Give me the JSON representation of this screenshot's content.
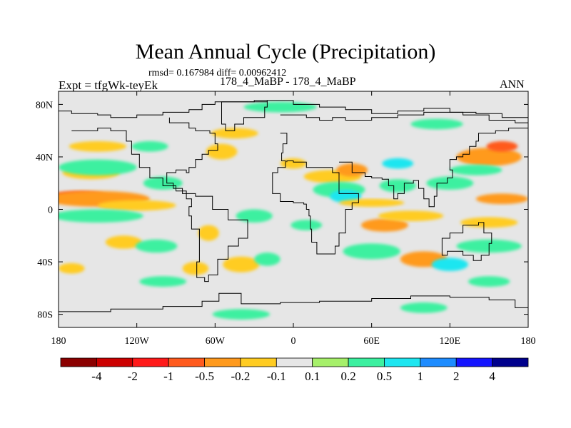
{
  "chart_data": {
    "type": "heatmap",
    "title": "Mean Annual Cycle (Precipitation)",
    "subtitle": "rmsd= 0.167984 diff= 0.00962412",
    "left_label": "Expt = tfgWk-teyEk",
    "center_label": "178_4_MaBP - 178_4_MaBP",
    "right_label": "ANN",
    "x_ticks": [
      "180",
      "120W",
      "60W",
      "0",
      "60E",
      "120E",
      "180"
    ],
    "x_tick_values": [
      -180,
      -120,
      -60,
      0,
      60,
      120,
      180
    ],
    "y_ticks": [
      "80N",
      "40N",
      "0",
      "40S",
      "80S"
    ],
    "y_tick_values": [
      80,
      40,
      0,
      -40,
      -80
    ],
    "xlim": [
      -180,
      180
    ],
    "ylim": [
      -90,
      90
    ],
    "colorbar": {
      "levels": [
        "-4",
        "-2",
        "-1",
        "-0.5",
        "-0.2",
        "-0.1",
        "0.1",
        "0.2",
        "0.5",
        "1",
        "2",
        "4"
      ],
      "colors": [
        "#8b0000",
        "#cc0000",
        "#ff1a1a",
        "#ff5a1e",
        "#ff9a1e",
        "#ffcc22",
        "#e6e6e6",
        "#a6f06a",
        "#3cf0a0",
        "#1ee6f0",
        "#1e8cff",
        "#1414ff",
        "#00008c"
      ]
    },
    "anomaly_patches": [
      {
        "lon": -165,
        "lat": 10,
        "rx": 22,
        "ry": 4,
        "value": -1
      },
      {
        "lon": -150,
        "lat": 8,
        "rx": 40,
        "ry": 6,
        "value": -0.5
      },
      {
        "lon": -120,
        "lat": 3,
        "rx": 30,
        "ry": 4,
        "value": -0.2
      },
      {
        "lon": -155,
        "lat": 28,
        "rx": 22,
        "ry": 5,
        "value": -0.2
      },
      {
        "lon": -150,
        "lat": 32,
        "rx": 30,
        "ry": 6,
        "value": 0.2
      },
      {
        "lon": -100,
        "lat": 20,
        "rx": 15,
        "ry": 5,
        "value": 0.2
      },
      {
        "lon": -150,
        "lat": -5,
        "rx": 35,
        "ry": 5,
        "value": 0.2
      },
      {
        "lon": -150,
        "lat": 48,
        "rx": 22,
        "ry": 4,
        "value": -0.2
      },
      {
        "lon": -110,
        "lat": 48,
        "rx": 14,
        "ry": 4,
        "value": 0.2
      },
      {
        "lon": -130,
        "lat": -25,
        "rx": 14,
        "ry": 5,
        "value": -0.2
      },
      {
        "lon": -105,
        "lat": -28,
        "rx": 16,
        "ry": 5,
        "value": 0.2
      },
      {
        "lon": -65,
        "lat": -18,
        "rx": 8,
        "ry": 6,
        "value": -0.2
      },
      {
        "lon": -75,
        "lat": -45,
        "rx": 10,
        "ry": 5,
        "value": -0.2
      },
      {
        "lon": -40,
        "lat": -42,
        "rx": 14,
        "ry": 6,
        "value": -0.2
      },
      {
        "lon": -55,
        "lat": 44,
        "rx": 12,
        "ry": 6,
        "value": -0.2
      },
      {
        "lon": -45,
        "lat": 58,
        "rx": 18,
        "ry": 4,
        "value": -0.2
      },
      {
        "lon": -10,
        "lat": 78,
        "rx": 28,
        "ry": 4,
        "value": 0.2
      },
      {
        "lon": -30,
        "lat": -5,
        "rx": 14,
        "ry": 5,
        "value": 0.2
      },
      {
        "lon": -20,
        "lat": -38,
        "rx": 10,
        "ry": 5,
        "value": 0.2
      },
      {
        "lon": -40,
        "lat": -80,
        "rx": 22,
        "ry": 4,
        "value": 0.2
      },
      {
        "lon": 30,
        "lat": 25,
        "rx": 22,
        "ry": 5,
        "value": -0.2
      },
      {
        "lon": 35,
        "lat": 15,
        "rx": 20,
        "ry": 6,
        "value": 0.2
      },
      {
        "lon": 40,
        "lat": 10,
        "rx": 12,
        "ry": 5,
        "value": 0.5
      },
      {
        "lon": 45,
        "lat": 30,
        "rx": 12,
        "ry": 5,
        "value": -0.5
      },
      {
        "lon": 60,
        "lat": 5,
        "rx": 25,
        "ry": 3,
        "value": -0.2
      },
      {
        "lon": 80,
        "lat": 18,
        "rx": 14,
        "ry": 5,
        "value": 0.2
      },
      {
        "lon": 70,
        "lat": -12,
        "rx": 18,
        "ry": 5,
        "value": -0.5
      },
      {
        "lon": 90,
        "lat": -5,
        "rx": 25,
        "ry": 4,
        "value": -0.2
      },
      {
        "lon": 60,
        "lat": -32,
        "rx": 22,
        "ry": 6,
        "value": 0.2
      },
      {
        "lon": 100,
        "lat": -38,
        "rx": 18,
        "ry": 6,
        "value": -0.5
      },
      {
        "lon": 120,
        "lat": -42,
        "rx": 14,
        "ry": 5,
        "value": 0.5
      },
      {
        "lon": 150,
        "lat": -28,
        "rx": 25,
        "ry": 5,
        "value": 0.2
      },
      {
        "lon": 150,
        "lat": -10,
        "rx": 22,
        "ry": 4,
        "value": -0.2
      },
      {
        "lon": 160,
        "lat": 8,
        "rx": 20,
        "ry": 4,
        "value": -0.5
      },
      {
        "lon": 120,
        "lat": 20,
        "rx": 18,
        "ry": 5,
        "value": 0.2
      },
      {
        "lon": 150,
        "lat": 40,
        "rx": 25,
        "ry": 7,
        "value": -0.5
      },
      {
        "lon": 160,
        "lat": 48,
        "rx": 12,
        "ry": 4,
        "value": -1
      },
      {
        "lon": 140,
        "lat": 30,
        "rx": 20,
        "ry": 4,
        "value": 0.2
      },
      {
        "lon": 110,
        "lat": 65,
        "rx": 20,
        "ry": 4,
        "value": 0.2
      },
      {
        "lon": 100,
        "lat": -75,
        "rx": 18,
        "ry": 4,
        "value": 0.2
      },
      {
        "lon": 150,
        "lat": -55,
        "rx": 16,
        "ry": 4,
        "value": 0.2
      },
      {
        "lon": -100,
        "lat": -55,
        "rx": 18,
        "ry": 4,
        "value": 0.2
      },
      {
        "lon": -170,
        "lat": -45,
        "rx": 10,
        "ry": 4,
        "value": -0.2
      },
      {
        "lon": 0,
        "lat": 35,
        "rx": 10,
        "ry": 4,
        "value": -0.2
      },
      {
        "lon": 80,
        "lat": 35,
        "rx": 12,
        "ry": 4,
        "value": 0.5
      },
      {
        "lon": 10,
        "lat": -12,
        "rx": 12,
        "ry": 4,
        "value": 0.2
      }
    ],
    "coastlines": [
      {
        "name": "arctic-coast",
        "closed": false,
        "points": [
          [
            -180,
            75
          ],
          [
            -170,
            73
          ],
          [
            -150,
            72
          ],
          [
            -140,
            70
          ],
          [
            -120,
            72
          ],
          [
            -100,
            74
          ],
          [
            -80,
            76
          ],
          [
            -70,
            80
          ],
          [
            -60,
            82
          ],
          [
            -20,
            83
          ],
          [
            0,
            80
          ],
          [
            20,
            78
          ],
          [
            40,
            76
          ],
          [
            60,
            73
          ],
          [
            80,
            75
          ],
          [
            100,
            77
          ],
          [
            120,
            74
          ],
          [
            140,
            73
          ],
          [
            160,
            70
          ],
          [
            180,
            70
          ]
        ]
      },
      {
        "name": "americas",
        "closed": false,
        "points": [
          [
            -170,
            60
          ],
          [
            -150,
            62
          ],
          [
            -140,
            60
          ],
          [
            -128,
            52
          ],
          [
            -124,
            42
          ],
          [
            -118,
            32
          ],
          [
            -110,
            24
          ],
          [
            -100,
            18
          ],
          [
            -90,
            14
          ],
          [
            -82,
            8
          ],
          [
            -78,
            2
          ],
          [
            -80,
            -5
          ],
          [
            -78,
            -15
          ],
          [
            -72,
            -25
          ],
          [
            -72,
            -40
          ],
          [
            -74,
            -52
          ],
          [
            -68,
            -55
          ],
          [
            -65,
            -50
          ],
          [
            -58,
            -38
          ],
          [
            -50,
            -28
          ],
          [
            -42,
            -22
          ],
          [
            -35,
            -8
          ],
          [
            -50,
            0
          ],
          [
            -62,
            10
          ],
          [
            -75,
            12
          ],
          [
            -85,
            16
          ],
          [
            -92,
            20
          ],
          [
            -97,
            28
          ],
          [
            -90,
            30
          ],
          [
            -82,
            28
          ],
          [
            -80,
            32
          ],
          [
            -75,
            38
          ],
          [
            -70,
            42
          ],
          [
            -65,
            45
          ],
          [
            -58,
            50
          ],
          [
            -60,
            58
          ],
          [
            -64,
            60
          ],
          [
            -75,
            62
          ],
          [
            -80,
            66
          ],
          [
            -95,
            70
          ]
        ]
      },
      {
        "name": "eurasia-africa",
        "closed": false,
        "points": [
          [
            -10,
            72
          ],
          [
            10,
            70
          ],
          [
            20,
            68
          ],
          [
            30,
            70
          ],
          [
            40,
            68
          ],
          [
            60,
            70
          ],
          [
            80,
            72
          ],
          [
            100,
            74
          ],
          [
            130,
            72
          ],
          [
            150,
            68
          ],
          [
            170,
            66
          ],
          [
            180,
            66
          ]
        ]
      },
      {
        "name": "europe-africa-west",
        "closed": false,
        "points": [
          [
            -10,
            58
          ],
          [
            -5,
            50
          ],
          [
            -8,
            43
          ],
          [
            -9,
            37
          ],
          [
            -6,
            32
          ],
          [
            -12,
            28
          ],
          [
            -16,
            20
          ],
          [
            -16,
            12
          ],
          [
            -10,
            6
          ],
          [
            0,
            5
          ],
          [
            8,
            4
          ],
          [
            10,
            0
          ],
          [
            12,
            -5
          ],
          [
            13,
            -15
          ],
          [
            14,
            -25
          ],
          [
            18,
            -34
          ],
          [
            26,
            -34
          ],
          [
            32,
            -28
          ],
          [
            35,
            -18
          ],
          [
            40,
            -10
          ],
          [
            40,
            0
          ],
          [
            45,
            5
          ],
          [
            50,
            12
          ],
          [
            43,
            12
          ],
          [
            35,
            28
          ],
          [
            30,
            32
          ],
          [
            20,
            32
          ],
          [
            10,
            36
          ],
          [
            0,
            37
          ],
          [
            -5,
            36
          ]
        ]
      },
      {
        "name": "asia-south",
        "closed": false,
        "points": [
          [
            35,
            36
          ],
          [
            45,
            28
          ],
          [
            55,
            25
          ],
          [
            60,
            24
          ],
          [
            68,
            23
          ],
          [
            73,
            18
          ],
          [
            77,
            8
          ],
          [
            80,
            12
          ],
          [
            85,
            20
          ],
          [
            92,
            22
          ],
          [
            96,
            16
          ],
          [
            100,
            8
          ],
          [
            104,
            2
          ],
          [
            108,
            10
          ],
          [
            110,
            20
          ],
          [
            118,
            24
          ],
          [
            122,
            30
          ],
          [
            120,
            38
          ],
          [
            125,
            40
          ],
          [
            130,
            42
          ],
          [
            135,
            48
          ],
          [
            140,
            52
          ],
          [
            142,
            58
          ],
          [
            155,
            60
          ],
          [
            165,
            62
          ],
          [
            180,
            64
          ]
        ]
      },
      {
        "name": "australia",
        "closed": true,
        "points": [
          [
            114,
            -22
          ],
          [
            120,
            -18
          ],
          [
            130,
            -12
          ],
          [
            137,
            -12
          ],
          [
            142,
            -10
          ],
          [
            146,
            -18
          ],
          [
            152,
            -26
          ],
          [
            150,
            -35
          ],
          [
            144,
            -39
          ],
          [
            138,
            -35
          ],
          [
            130,
            -32
          ],
          [
            118,
            -35
          ],
          [
            114,
            -30
          ]
        ]
      },
      {
        "name": "antarctica",
        "closed": false,
        "points": [
          [
            -180,
            -78
          ],
          [
            -140,
            -76
          ],
          [
            -100,
            -74
          ],
          [
            -70,
            -70
          ],
          [
            -57,
            -64
          ],
          [
            -40,
            -72
          ],
          [
            -10,
            -71
          ],
          [
            20,
            -70
          ],
          [
            60,
            -68
          ],
          [
            90,
            -66
          ],
          [
            120,
            -67
          ],
          [
            150,
            -69
          ],
          [
            170,
            -75
          ],
          [
            180,
            -78
          ]
        ]
      },
      {
        "name": "greenland",
        "closed": true,
        "points": [
          [
            -55,
            82
          ],
          [
            -30,
            83
          ],
          [
            -20,
            78
          ],
          [
            -22,
            70
          ],
          [
            -38,
            65
          ],
          [
            -45,
            60
          ],
          [
            -52,
            65
          ],
          [
            -55,
            72
          ]
        ]
      }
    ]
  }
}
